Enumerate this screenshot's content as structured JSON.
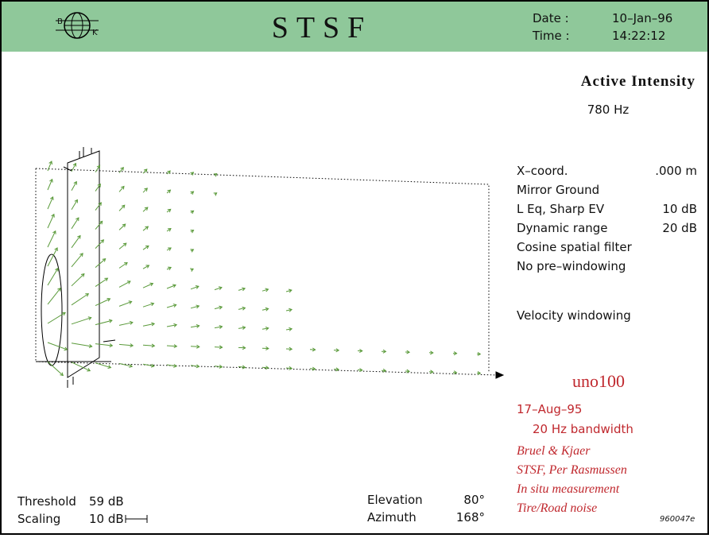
{
  "header": {
    "logo": [
      "B",
      "K"
    ],
    "title": "STSF",
    "date_label": "Date :",
    "date": "10–Jan–96",
    "time_label": "Time :",
    "time": "14:22:12"
  },
  "panel": {
    "title": "Active Intensity",
    "frequency": "780 Hz",
    "settings": [
      [
        "X–coord.",
        ".000 m"
      ],
      [
        "Mirror Ground",
        ""
      ],
      [
        "L  Eq, Sharp EV",
        "10 dB"
      ],
      [
        "Dynamic range",
        "20 dB"
      ],
      [
        "Cosine spatial filter",
        ""
      ],
      [
        "No pre–windowing",
        ""
      ]
    ],
    "windowing": "Velocity windowing"
  },
  "info": {
    "name": "uno100",
    "date": "17–Aug–95",
    "bandwidth": "20 Hz bandwidth",
    "notes": [
      "Bruel & Kjaer",
      "STSF, Per Rasmussen",
      "In situ measurement",
      "Tire/Road noise"
    ],
    "id": "960047e"
  },
  "footer": {
    "threshold_label": "Threshold",
    "threshold": "59 dB",
    "scaling_label": "Scaling",
    "scaling": "10 dB",
    "elevation_label": "Elevation",
    "elevation": "80°",
    "azimuth_label": "Azimuth",
    "azimuth": "168°"
  }
}
